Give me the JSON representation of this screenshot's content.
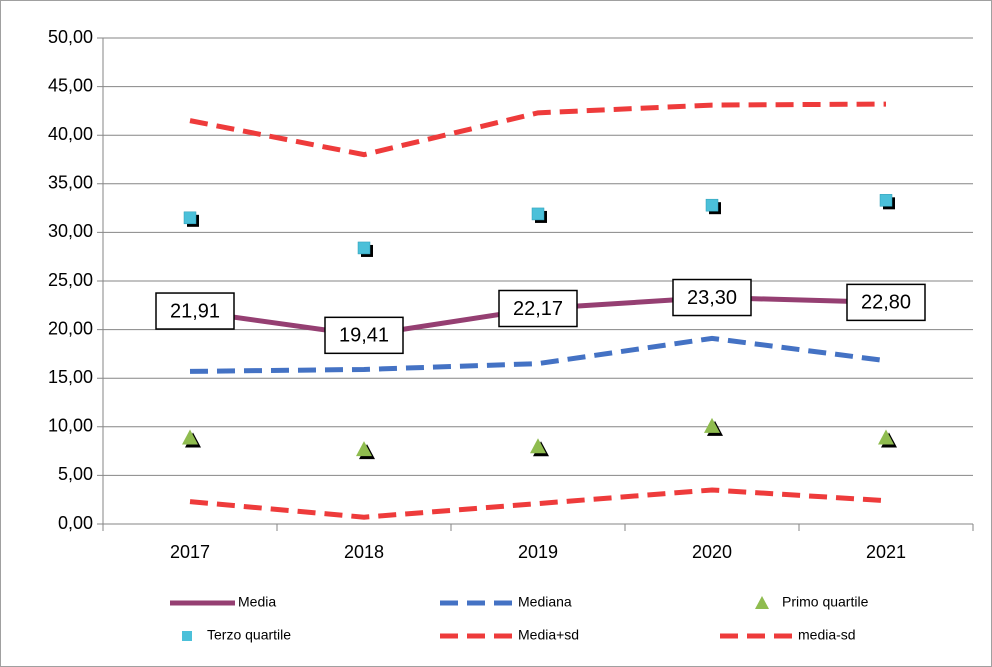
{
  "chart_data": {
    "type": "line",
    "categories": [
      "2017",
      "2018",
      "2019",
      "2020",
      "2021"
    ],
    "ylim": [
      0,
      50
    ],
    "yticks": [
      {
        "value": 0,
        "label": "0,00"
      },
      {
        "value": 5,
        "label": "5,00"
      },
      {
        "value": 10,
        "label": "10,00"
      },
      {
        "value": 15,
        "label": "15,00"
      },
      {
        "value": 20,
        "label": "20,00"
      },
      {
        "value": 25,
        "label": "25,00"
      },
      {
        "value": 30,
        "label": "30,00"
      },
      {
        "value": 35,
        "label": "35,00"
      },
      {
        "value": 40,
        "label": "40,00"
      },
      {
        "value": 45,
        "label": "45,00"
      },
      {
        "value": 50,
        "label": "50,00"
      }
    ],
    "grid": true,
    "legend": "bottom",
    "series": [
      {
        "name": "Media",
        "color": "#953f72",
        "style": "solid",
        "values": [
          21.91,
          19.41,
          22.17,
          23.3,
          22.8
        ],
        "value_labels": [
          "21,91",
          "19,41",
          "22,17",
          "23,30",
          "22,80"
        ]
      },
      {
        "name": "Mediana",
        "color": "#4472c4",
        "style": "dashed",
        "values": [
          15.7,
          15.9,
          16.5,
          19.1,
          16.8
        ]
      },
      {
        "name": "Primo quartile",
        "color": "#8fbc4f",
        "style": "triangle",
        "values": [
          8.9,
          7.7,
          8.0,
          10.1,
          8.9
        ]
      },
      {
        "name": "Terzo quartile",
        "color": "#4bc0d9",
        "style": "square",
        "values": [
          31.5,
          28.4,
          31.9,
          32.8,
          33.3
        ]
      },
      {
        "name": "Media+sd",
        "color": "#ee3b3b",
        "style": "dashed",
        "values": [
          41.5,
          38.0,
          42.3,
          43.1,
          43.2
        ]
      },
      {
        "name": "media-sd",
        "color": "#ee3b3b",
        "style": "dashed",
        "values": [
          2.3,
          0.7,
          2.1,
          3.5,
          2.4
        ]
      }
    ]
  }
}
